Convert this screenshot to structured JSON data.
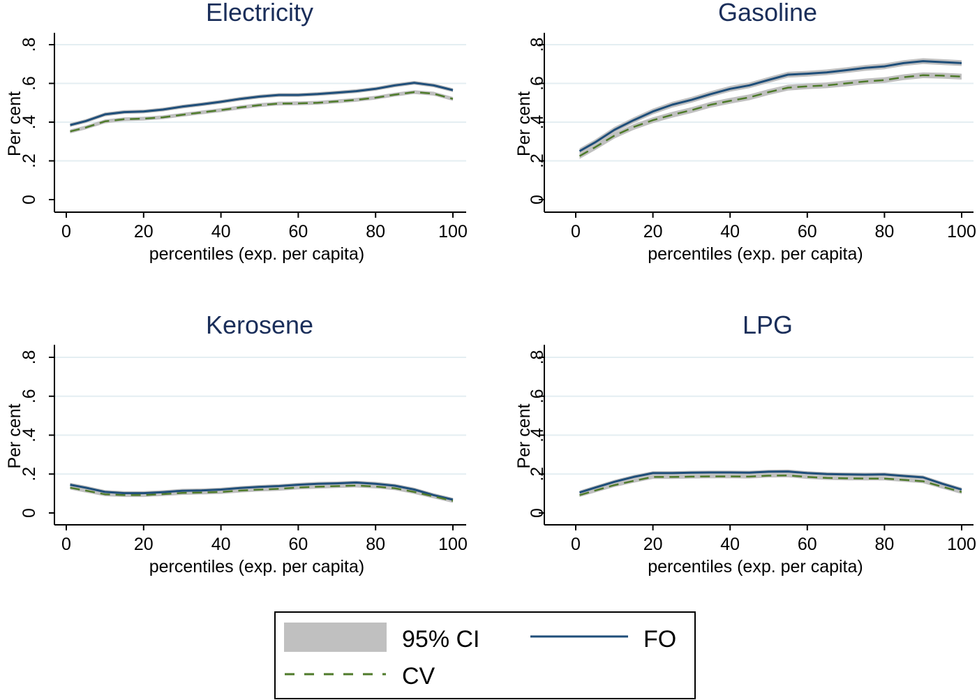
{
  "chart_data": [
    {
      "type": "line",
      "title": "Electricity",
      "xlabel": "percentiles (exp. per capita)",
      "ylabel": "Per cent",
      "xlim": [
        0,
        100
      ],
      "ylim": [
        0,
        0.8
      ],
      "xticks": [
        0,
        20,
        40,
        60,
        80,
        100
      ],
      "xtick_labels": [
        "0",
        "20",
        "40",
        "60",
        "80",
        "100"
      ],
      "yticks": [
        0,
        0.2,
        0.4,
        0.6,
        0.8
      ],
      "ytick_labels": [
        "0",
        ".2",
        ".4",
        ".6",
        ".8"
      ],
      "grid": true,
      "x": [
        1,
        5,
        10,
        15,
        20,
        25,
        30,
        35,
        40,
        45,
        50,
        55,
        60,
        65,
        70,
        75,
        80,
        85,
        90,
        95,
        100
      ],
      "series": [
        {
          "name": "FO",
          "values": [
            0.385,
            0.405,
            0.44,
            0.452,
            0.455,
            0.465,
            0.48,
            0.492,
            0.505,
            0.52,
            0.532,
            0.54,
            0.54,
            0.545,
            0.552,
            0.56,
            0.572,
            0.59,
            0.603,
            0.59,
            0.565
          ],
          "ci_halfwidth": 0.01
        },
        {
          "name": "CV",
          "values": [
            0.352,
            0.372,
            0.404,
            0.415,
            0.418,
            0.425,
            0.438,
            0.45,
            0.462,
            0.476,
            0.488,
            0.496,
            0.497,
            0.5,
            0.507,
            0.515,
            0.526,
            0.542,
            0.555,
            0.547,
            0.52
          ],
          "ci_halfwidth": 0.01
        }
      ]
    },
    {
      "type": "line",
      "title": "Gasoline",
      "xlabel": "percentiles (exp. per capita)",
      "ylabel": "Per cent",
      "xlim": [
        0,
        100
      ],
      "ylim": [
        0,
        0.8
      ],
      "xticks": [
        0,
        20,
        40,
        60,
        80,
        100
      ],
      "xtick_labels": [
        "0",
        "20",
        "40",
        "60",
        "80",
        "100"
      ],
      "yticks": [
        0,
        0.2,
        0.4,
        0.6,
        0.8
      ],
      "ytick_labels": [
        "0",
        ".2",
        ".4",
        ".6",
        ".8"
      ],
      "grid": true,
      "x": [
        1,
        5,
        10,
        15,
        20,
        25,
        30,
        35,
        40,
        45,
        50,
        55,
        60,
        65,
        70,
        75,
        80,
        85,
        90,
        95,
        100
      ],
      "series": [
        {
          "name": "FO",
          "values": [
            0.25,
            0.295,
            0.36,
            0.41,
            0.455,
            0.49,
            0.515,
            0.545,
            0.572,
            0.59,
            0.618,
            0.645,
            0.65,
            0.657,
            0.668,
            0.68,
            0.688,
            0.705,
            0.715,
            0.71,
            0.705
          ],
          "ci_halfwidth": 0.015
        },
        {
          "name": "CV",
          "values": [
            0.225,
            0.27,
            0.33,
            0.375,
            0.41,
            0.438,
            0.462,
            0.49,
            0.51,
            0.528,
            0.555,
            0.578,
            0.585,
            0.59,
            0.6,
            0.61,
            0.617,
            0.632,
            0.642,
            0.64,
            0.635
          ],
          "ci_halfwidth": 0.015
        }
      ]
    },
    {
      "type": "line",
      "title": "Kerosene",
      "xlabel": "percentiles (exp. per capita)",
      "ylabel": "Per cent",
      "xlim": [
        0,
        100
      ],
      "ylim": [
        0,
        0.8
      ],
      "xticks": [
        0,
        20,
        40,
        60,
        80,
        100
      ],
      "xtick_labels": [
        "0",
        "20",
        "40",
        "60",
        "80",
        "100"
      ],
      "yticks": [
        0,
        0.2,
        0.4,
        0.6,
        0.8
      ],
      "ytick_labels": [
        "0",
        ".2",
        ".4",
        ".6",
        ".8"
      ],
      "grid": true,
      "x": [
        1,
        5,
        10,
        15,
        20,
        25,
        30,
        35,
        40,
        45,
        50,
        55,
        60,
        65,
        70,
        75,
        80,
        85,
        90,
        95,
        100
      ],
      "series": [
        {
          "name": "FO",
          "values": [
            0.145,
            0.13,
            0.108,
            0.102,
            0.102,
            0.107,
            0.114,
            0.116,
            0.12,
            0.128,
            0.134,
            0.138,
            0.145,
            0.15,
            0.152,
            0.156,
            0.15,
            0.14,
            0.12,
            0.092,
            0.068
          ],
          "ci_halfwidth": 0.01
        },
        {
          "name": "CV",
          "values": [
            0.13,
            0.115,
            0.096,
            0.092,
            0.092,
            0.097,
            0.103,
            0.105,
            0.108,
            0.115,
            0.12,
            0.124,
            0.131,
            0.135,
            0.138,
            0.141,
            0.136,
            0.127,
            0.108,
            0.085,
            0.062
          ],
          "ci_halfwidth": 0.01
        }
      ]
    },
    {
      "type": "line",
      "title": "LPG",
      "xlabel": "percentiles (exp. per capita)",
      "ylabel": "Per cent",
      "xlim": [
        0,
        100
      ],
      "ylim": [
        0,
        0.8
      ],
      "xticks": [
        0,
        20,
        40,
        60,
        80,
        100
      ],
      "xtick_labels": [
        "0",
        "20",
        "40",
        "60",
        "80",
        "100"
      ],
      "yticks": [
        0,
        0.2,
        0.4,
        0.6,
        0.8
      ],
      "ytick_labels": [
        "0",
        ".2",
        ".4",
        ".6",
        ".8"
      ],
      "grid": true,
      "x": [
        1,
        5,
        10,
        15,
        20,
        25,
        30,
        35,
        40,
        45,
        50,
        55,
        60,
        65,
        70,
        75,
        80,
        85,
        90,
        95,
        100
      ],
      "series": [
        {
          "name": "FO",
          "values": [
            0.105,
            0.13,
            0.16,
            0.185,
            0.205,
            0.205,
            0.207,
            0.208,
            0.208,
            0.207,
            0.212,
            0.213,
            0.205,
            0.2,
            0.198,
            0.197,
            0.198,
            0.19,
            0.183,
            0.15,
            0.12
          ],
          "ci_halfwidth": 0.01
        },
        {
          "name": "CV",
          "values": [
            0.092,
            0.115,
            0.143,
            0.165,
            0.185,
            0.185,
            0.187,
            0.188,
            0.188,
            0.187,
            0.192,
            0.193,
            0.185,
            0.18,
            0.178,
            0.177,
            0.177,
            0.17,
            0.163,
            0.135,
            0.108
          ],
          "ci_halfwidth": 0.01
        }
      ]
    }
  ],
  "legend": {
    "items": [
      {
        "name": "ci",
        "label": "95% CI"
      },
      {
        "name": "fo",
        "label": "FO"
      },
      {
        "name": "cv",
        "label": "CV"
      }
    ],
    "placement": "bottom-center"
  },
  "colors": {
    "fo": "#1f4e79",
    "cv": "#4e7a2a",
    "ci": "#c0c0c0",
    "grid": "#e4eef2",
    "title": "#1a2e5a"
  }
}
